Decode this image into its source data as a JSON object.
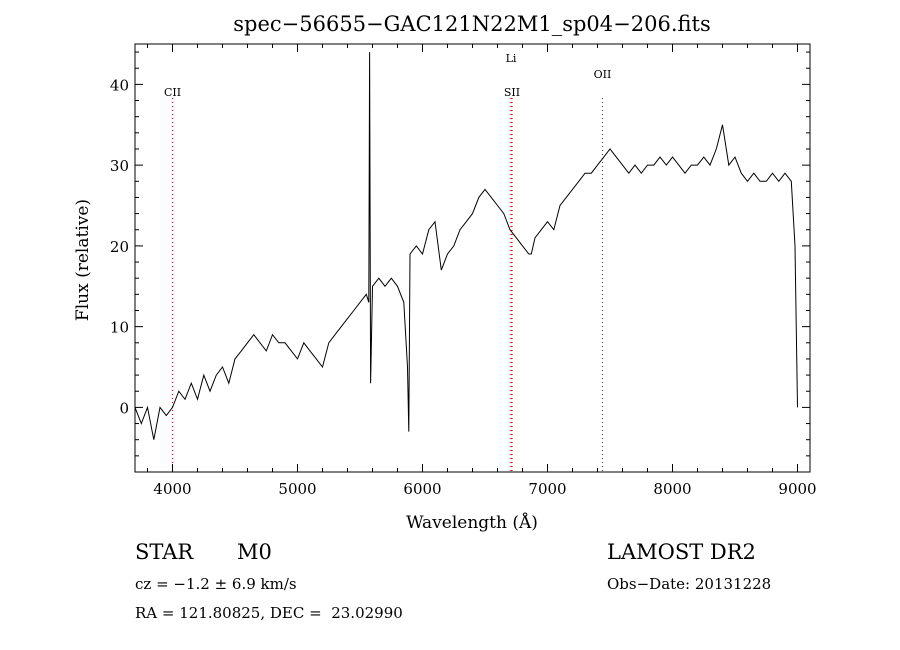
{
  "chart_data": {
    "type": "line",
    "title": "spec−56655−GAC121N22M1_sp04−206.fits",
    "xlabel": "Wavelength (Å)",
    "ylabel": "Flux (relative)",
    "xlim": [
      3700,
      9100
    ],
    "ylim": [
      -8,
      45
    ],
    "xticks": [
      4000,
      5000,
      6000,
      7000,
      8000,
      9000
    ],
    "yticks": [
      0,
      10,
      20,
      30,
      40
    ],
    "grid": false,
    "series": [
      {
        "x": [
          3700,
          3750,
          3800,
          3850,
          3900,
          3950,
          4000,
          4050,
          4100,
          4150,
          4200,
          4250,
          4300,
          4350,
          4400,
          4450,
          4500,
          4550,
          4600,
          4650,
          4700,
          4750,
          4800,
          4850,
          4900,
          4950,
          5000,
          5050,
          5100,
          5150,
          5200,
          5250,
          5300,
          5350,
          5400,
          5450,
          5500,
          5550,
          5570,
          5577,
          5585,
          5600,
          5650,
          5700,
          5750,
          5800,
          5850,
          5880,
          5890,
          5900,
          5950,
          6000,
          6050,
          6100,
          6150,
          6200,
          6250,
          6300,
          6350,
          6400,
          6450,
          6500,
          6550,
          6600,
          6650,
          6700,
          6750,
          6800,
          6850,
          6870,
          6900,
          6950,
          7000,
          7050,
          7100,
          7150,
          7200,
          7250,
          7300,
          7350,
          7400,
          7450,
          7500,
          7550,
          7600,
          7650,
          7700,
          7750,
          7800,
          7850,
          7900,
          7950,
          8000,
          8050,
          8100,
          8150,
          8200,
          8250,
          8300,
          8350,
          8400,
          8450,
          8500,
          8550,
          8600,
          8650,
          8700,
          8750,
          8800,
          8850,
          8900,
          8950,
          8980,
          9000
        ],
        "y": [
          0,
          -2,
          0,
          -4,
          0,
          -1,
          0,
          2,
          1,
          3,
          1,
          4,
          2,
          4,
          5,
          3,
          6,
          7,
          8,
          9,
          8,
          7,
          9,
          8,
          8,
          7,
          6,
          8,
          7,
          6,
          5,
          8,
          9,
          10,
          11,
          12,
          13,
          14,
          13,
          44,
          3,
          15,
          16,
          15,
          16,
          15,
          13,
          5,
          -3,
          19,
          20,
          19,
          22,
          23,
          17,
          19,
          20,
          22,
          23,
          24,
          26,
          27,
          26,
          25,
          24,
          22,
          21,
          20,
          19,
          19,
          21,
          22,
          23,
          22,
          25,
          26,
          27,
          28,
          29,
          29,
          30,
          31,
          32,
          31,
          30,
          29,
          30,
          29,
          30,
          30,
          31,
          30,
          31,
          30,
          29,
          30,
          30,
          31,
          30,
          32,
          35,
          30,
          31,
          29,
          28,
          29,
          28,
          28,
          29,
          28,
          29,
          28,
          20,
          0
        ]
      }
    ],
    "lines": [
      {
        "label": "CII",
        "x": 4000,
        "color": "#ff0000"
      },
      {
        "label": "Li",
        "x": 6708,
        "color": "#ff0000"
      },
      {
        "label": "SII",
        "x": 6716,
        "color": "#ff0000"
      },
      {
        "label": "OII",
        "x": 7440,
        "color": "#444444"
      }
    ]
  },
  "info": {
    "class_label": "STAR",
    "subclass": "M0",
    "redshift": "cz = −1.2 ± 6.9 km/s",
    "coords": "RA = 121.80825, DEC =  23.02990",
    "survey": "LAMOST DR2",
    "obs_date": "Obs−Date: 20131228"
  }
}
